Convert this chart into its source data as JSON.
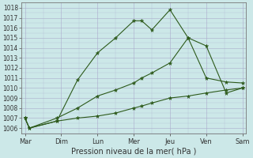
{
  "background_color": "#cce8e8",
  "grid_color": "#aaaacc",
  "line_color": "#2d5a1b",
  "xlabel": "Pression niveau de la mer( hPa )",
  "xlabels": [
    "Mar",
    "Dim",
    "Lun",
    "Mer",
    "Jeu",
    "Ven",
    "Sam"
  ],
  "x_positions": [
    0,
    1,
    2,
    3,
    4,
    5,
    6
  ],
  "ylim": [
    1005.5,
    1018.5
  ],
  "yticks": [
    1006,
    1007,
    1008,
    1009,
    1010,
    1011,
    1012,
    1013,
    1014,
    1015,
    1016,
    1017,
    1018
  ],
  "s1_x": [
    0,
    0.12,
    0.88,
    1.45,
    2.0,
    2.5,
    3.0,
    3.22,
    3.5,
    4.0,
    4.5,
    5.0,
    5.55,
    6.0
  ],
  "s1_y": [
    1007.0,
    1006.0,
    1006.7,
    1010.8,
    1013.5,
    1015.0,
    1016.7,
    1016.7,
    1015.8,
    1017.8,
    1015.0,
    1011.0,
    1010.6,
    1010.5
  ],
  "s2_x": [
    0,
    0.12,
    0.88,
    1.45,
    2.0,
    2.5,
    3.0,
    3.22,
    3.5,
    4.0,
    4.5,
    5.0,
    5.55,
    6.0
  ],
  "s2_y": [
    1007.0,
    1006.0,
    1007.0,
    1008.0,
    1009.2,
    1009.8,
    1010.5,
    1011.0,
    1011.5,
    1012.5,
    1015.0,
    1014.2,
    1009.5,
    1010.0
  ],
  "s3_x": [
    0,
    0.12,
    0.88,
    1.45,
    2.0,
    2.5,
    3.0,
    3.22,
    3.5,
    4.0,
    4.5,
    5.0,
    5.55,
    6.0
  ],
  "s3_y": [
    1007.0,
    1006.0,
    1006.7,
    1007.0,
    1007.2,
    1007.5,
    1008.0,
    1008.2,
    1008.5,
    1009.0,
    1009.2,
    1009.5,
    1009.8,
    1010.0
  ],
  "ylabel_fontsize": 5.5,
  "xlabel_fontsize": 7.0,
  "xtick_fontsize": 6.0
}
